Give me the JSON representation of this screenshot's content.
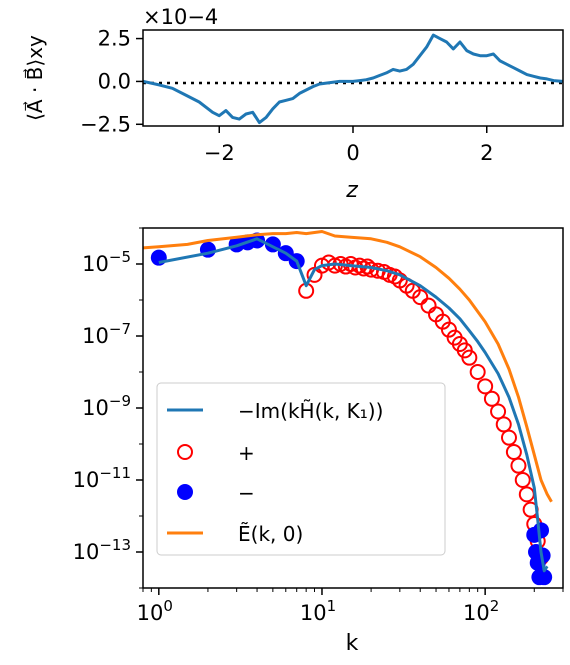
{
  "chart_data": [
    {
      "type": "line",
      "ylabel": "⟨A⃗ · B⃗⟩xy",
      "xlabel": "z",
      "y_multiplier": "×10−4",
      "xlim": [
        -3.14,
        3.14
      ],
      "ylim": [
        -2.6,
        3.0
      ],
      "xticks": [
        -2,
        0,
        2
      ],
      "xtick_labels": [
        "−2",
        "0",
        "2"
      ],
      "yticks": [
        2.5,
        0.0,
        -2.5
      ],
      "ytick_labels": [
        "2.5",
        "0.0",
        "−2.5"
      ],
      "zero_line": "dotted",
      "series": [
        {
          "color": "#1f77b4",
          "x": [
            -3.14,
            -2.9,
            -2.7,
            -2.5,
            -2.3,
            -2.1,
            -2.0,
            -1.9,
            -1.8,
            -1.7,
            -1.6,
            -1.5,
            -1.4,
            -1.3,
            -1.2,
            -1.1,
            -1.0,
            -0.9,
            -0.8,
            -0.7,
            -0.6,
            -0.5,
            -0.4,
            -0.3,
            -0.2,
            -0.1,
            0.0,
            0.1,
            0.2,
            0.3,
            0.4,
            0.5,
            0.6,
            0.7,
            0.8,
            0.9,
            1.0,
            1.1,
            1.2,
            1.3,
            1.4,
            1.5,
            1.6,
            1.7,
            1.8,
            1.9,
            2.0,
            2.1,
            2.2,
            2.3,
            2.4,
            2.5,
            2.6,
            2.7,
            2.8,
            2.9,
            3.0,
            3.14
          ],
          "values": [
            0.0,
            -0.2,
            -0.4,
            -0.8,
            -1.2,
            -1.8,
            -2.0,
            -1.7,
            -2.1,
            -2.2,
            -1.9,
            -1.8,
            -2.4,
            -2.1,
            -1.6,
            -1.2,
            -1.1,
            -1.0,
            -0.7,
            -0.5,
            -0.3,
            -0.15,
            -0.1,
            -0.05,
            0.0,
            0.0,
            0.0,
            0.05,
            0.1,
            0.2,
            0.35,
            0.5,
            0.7,
            0.6,
            0.7,
            1.0,
            1.5,
            2.0,
            2.7,
            2.5,
            2.3,
            1.9,
            2.3,
            1.8,
            1.6,
            1.5,
            1.5,
            1.6,
            1.2,
            1.0,
            0.8,
            0.6,
            0.4,
            0.3,
            0.2,
            0.15,
            0.05,
            0.0
          ]
        }
      ]
    },
    {
      "type": "scatter",
      "xlabel": "k",
      "xscale": "log",
      "yscale": "log",
      "xlim": [
        0.8,
        300
      ],
      "ylim": [
        1e-14,
        0.0001
      ],
      "xticks": [
        1,
        10,
        100
      ],
      "xtick_labels": [
        {
          "base": "10",
          "exp": "0"
        },
        {
          "base": "10",
          "exp": "1"
        },
        {
          "base": "10",
          "exp": "2"
        }
      ],
      "yticks": [
        1e-05,
        1e-07,
        1e-09,
        1e-11,
        1e-13
      ],
      "ytick_labels": [
        {
          "base": "10",
          "exp": "−5"
        },
        {
          "base": "10",
          "exp": "−7"
        },
        {
          "base": "10",
          "exp": "−9"
        },
        {
          "base": "10",
          "exp": "−11"
        },
        {
          "base": "10",
          "exp": "−13"
        }
      ],
      "legend_position": "lower-left",
      "series": [
        {
          "name": "−Im(kH̃(k, K₁))",
          "style": "line",
          "color": "#1f77b4",
          "x": [
            1,
            2,
            3,
            4,
            5,
            6,
            7,
            8,
            9,
            10,
            12,
            15,
            20,
            25,
            30,
            40,
            50,
            60,
            70,
            80,
            90,
            100,
            120,
            140,
            160,
            180,
            200,
            210,
            220,
            230,
            240
          ],
          "values": [
            1.1e-05,
            2e-05,
            3.2e-05,
            5e-05,
            3e-05,
            2e-05,
            1.2e-05,
            2.5e-06,
            7e-06,
            9e-06,
            1e-05,
            9e-06,
            8e-06,
            6.5e-06,
            5e-06,
            2.5e-06,
            1.2e-06,
            6e-07,
            3e-07,
            1.4e-07,
            7e-08,
            3.5e-08,
            9e-09,
            2e-09,
            3.5e-10,
            5e-11,
            6e-12,
            8e-13,
            1e-13,
            3e-14,
            4e-14
          ]
        },
        {
          "name": "+",
          "style": "open-circle",
          "color": "#ff0000",
          "x": [
            8,
            9,
            10,
            11,
            12,
            13,
            14,
            15,
            16,
            17,
            18,
            19,
            20,
            22,
            24,
            26,
            28,
            30,
            33,
            36,
            40,
            45,
            50,
            55,
            60,
            65,
            70,
            75,
            80,
            90,
            100,
            110,
            120,
            130,
            140,
            150,
            160,
            170,
            180,
            190,
            200,
            210,
            220
          ],
          "values": [
            1.8e-06,
            5e-06,
            9e-06,
            1.1e-05,
            9e-06,
            1e-05,
            8.5e-06,
            1e-05,
            8e-06,
            9e-06,
            7.5e-06,
            8.5e-06,
            7e-06,
            6.5e-06,
            6e-06,
            5e-06,
            4.5e-06,
            3.5e-06,
            2.5e-06,
            1.8e-06,
            1.2e-06,
            7e-07,
            4e-07,
            2.5e-07,
            1.5e-07,
            9e-08,
            6e-08,
            4e-08,
            2.5e-08,
            1e-08,
            4e-09,
            1.8e-09,
            8e-10,
            3.5e-10,
            1.5e-10,
            6e-11,
            2.5e-11,
            1e-11,
            4e-12,
            1.5e-12,
            6e-13,
            2e-13,
            7e-14
          ]
        },
        {
          "name": "−",
          "style": "filled-circle",
          "color": "#0000ff",
          "x": [
            1,
            2,
            3,
            3.5,
            4,
            5,
            6,
            7,
            200,
            205,
            210,
            215,
            220,
            225,
            230
          ],
          "values": [
            1.5e-05,
            2.5e-05,
            3.5e-05,
            4e-05,
            4.5e-05,
            3.5e-05,
            2e-05,
            1.2e-05,
            3e-13,
            1e-13,
            5e-14,
            2e-14,
            4e-13,
            8e-14,
            2e-14
          ]
        },
        {
          "name": "Ẽ(k, 0)",
          "style": "line",
          "color": "#ff7f0e",
          "x": [
            0.8,
            1,
            1.5,
            2,
            3,
            4,
            5,
            6,
            7,
            8,
            9,
            10,
            12,
            15,
            20,
            25,
            30,
            40,
            50,
            60,
            70,
            80,
            100,
            120,
            140,
            160,
            180,
            200,
            220,
            240,
            255
          ],
          "values": [
            2.8e-05,
            3e-05,
            3.5e-05,
            4.5e-05,
            5.5e-05,
            6.5e-05,
            7e-05,
            7e-05,
            7.5e-05,
            7e-05,
            7.5e-05,
            8e-05,
            6e-05,
            5.5e-05,
            5e-05,
            4e-05,
            3e-05,
            1.6e-05,
            8e-06,
            4e-06,
            2e-06,
            1e-06,
            2.5e-07,
            6e-08,
            1.2e-08,
            2e-09,
            3e-10,
            5e-11,
            1e-11,
            4e-12,
            2.5e-12
          ]
        }
      ]
    }
  ]
}
